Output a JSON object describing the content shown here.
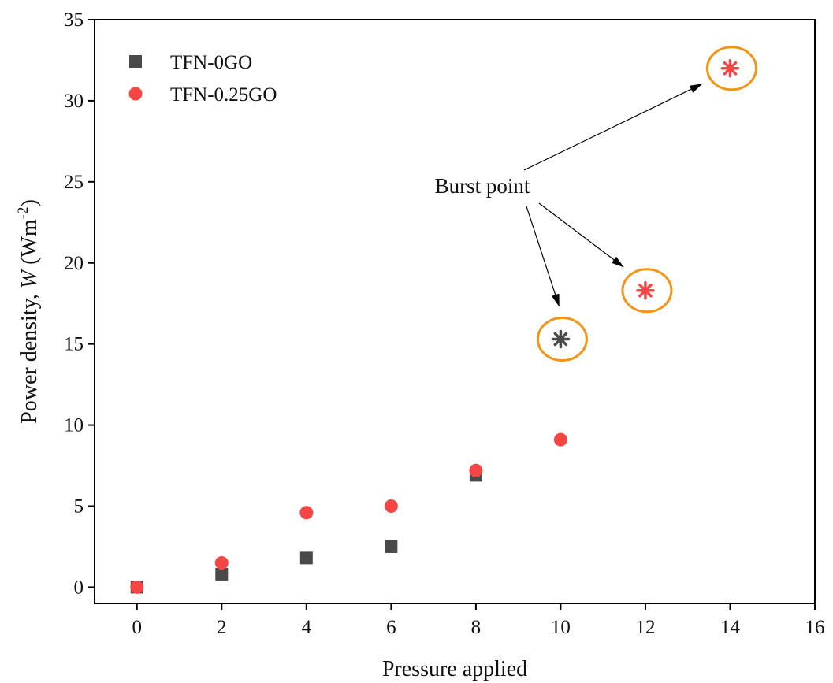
{
  "chart_data": {
    "type": "scatter",
    "title": "",
    "xlabel": "Pressure applied",
    "ylabel": {
      "prefix": "Power density, ",
      "symbol": "W",
      "unit_open": " (Wm",
      "unit_sup": "-2",
      "unit_close": ")"
    },
    "xlim": [
      -1,
      16
    ],
    "ylim": [
      -1,
      35
    ],
    "xticks": [
      0,
      2,
      4,
      6,
      8,
      10,
      12,
      14,
      16
    ],
    "yticks": [
      0,
      5,
      10,
      15,
      20,
      25,
      30,
      35
    ],
    "grid": false,
    "legend_position": "top-left",
    "series": [
      {
        "name": "TFN-0GO",
        "marker": "square",
        "color": "#4a4a4a",
        "points": [
          {
            "x": 0,
            "y": 0
          },
          {
            "x": 2,
            "y": 0.8
          },
          {
            "x": 4,
            "y": 1.8
          },
          {
            "x": 6,
            "y": 2.5
          },
          {
            "x": 8,
            "y": 6.9
          }
        ],
        "burst_point": {
          "x": 10,
          "y": 15.3
        }
      },
      {
        "name": "TFN-0.25GO",
        "marker": "circle",
        "color": "#f64545",
        "points": [
          {
            "x": 0,
            "y": 0
          },
          {
            "x": 2,
            "y": 1.5
          },
          {
            "x": 4,
            "y": 4.6
          },
          {
            "x": 6,
            "y": 5.0
          },
          {
            "x": 8,
            "y": 7.2
          },
          {
            "x": 10,
            "y": 9.1
          }
        ],
        "burst_points": [
          {
            "x": 12,
            "y": 18.3
          },
          {
            "x": 14,
            "y": 32.0
          }
        ]
      }
    ],
    "annotation": {
      "text": "Burst point",
      "highlight_color": "#f39416"
    }
  }
}
